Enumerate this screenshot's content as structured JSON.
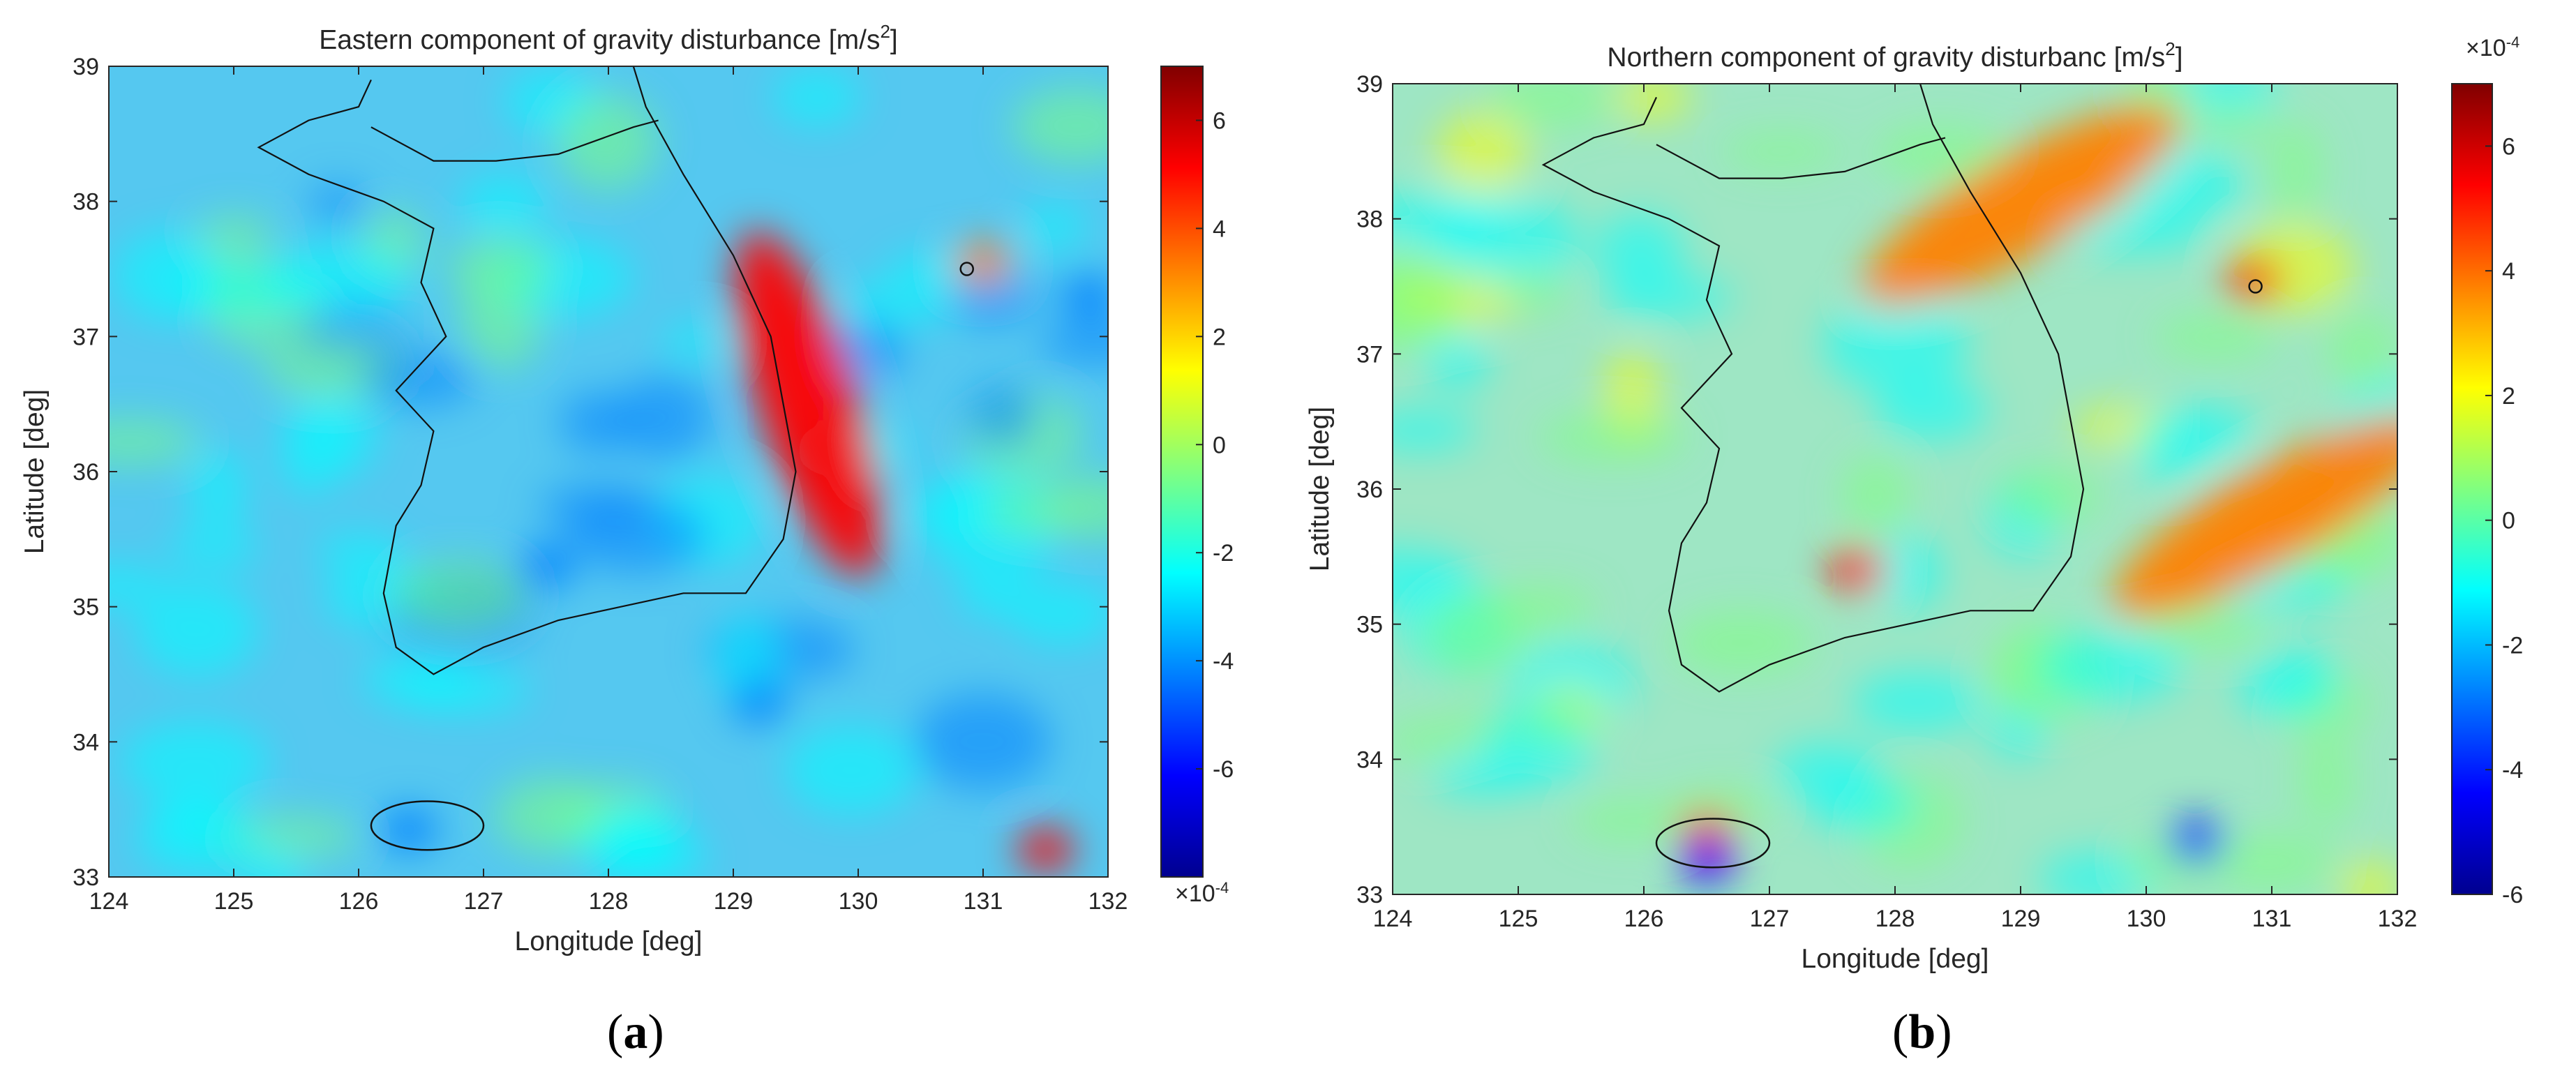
{
  "chart_data": [
    {
      "type": "heatmap",
      "panel_label": "a",
      "title": "Eastern component of gravity disturbance [m/s",
      "title_sup": "2",
      "title_end": "]",
      "xlabel": "Longitude [deg]",
      "ylabel": "Latitude [deg]",
      "xlim": [
        124,
        132
      ],
      "ylim": [
        33,
        39
      ],
      "xticks": [
        "124",
        "125",
        "126",
        "127",
        "128",
        "129",
        "130",
        "131",
        "132"
      ],
      "yticks": [
        "33",
        "34",
        "35",
        "36",
        "37",
        "38",
        "39"
      ],
      "colorbar": {
        "ticks": [
          "-6",
          "-4",
          "-2",
          "0",
          "2",
          "4",
          "6"
        ],
        "range": [
          -8,
          7
        ],
        "exponent": "-4",
        "exponent_position": "bottom",
        "colormap": "jet"
      },
      "features": [
        {
          "label": "strong positive band along east coast",
          "lon": 129.6,
          "lat": 36.5,
          "value": 4.5
        },
        {
          "label": "positive anomaly near Ulleungdo",
          "lon": 131.0,
          "lat": 37.55,
          "value": 4.0
        },
        {
          "label": "negative anomaly near Ulleungdo",
          "lon": 131.85,
          "lat": 37.3,
          "value": -5.0
        },
        {
          "label": "negative anomaly inland",
          "lon": 127.5,
          "lat": 35.3,
          "value": -4.5
        },
        {
          "label": "negative anomaly offshore south",
          "lon": 129.2,
          "lat": 34.3,
          "value": -4.0
        },
        {
          "label": "positive anomaly southeast",
          "lon": 131.5,
          "lat": 33.2,
          "value": 4.5
        },
        {
          "label": "Jeju negative/positive pair",
          "lon": 126.4,
          "lat": 33.35,
          "value": -5.0
        }
      ]
    },
    {
      "type": "heatmap",
      "panel_label": "b",
      "title": "Northern component of gravity disturbanc [m/s",
      "title_sup": "2",
      "title_end": "]",
      "xlabel": "Longitude [deg]",
      "ylabel": "Latitude [deg]",
      "xlim": [
        124,
        132
      ],
      "ylim": [
        33,
        39
      ],
      "xticks": [
        "124",
        "125",
        "126",
        "127",
        "128",
        "129",
        "130",
        "131",
        "132"
      ],
      "yticks": [
        "33",
        "34",
        "35",
        "36",
        "37",
        "38",
        "39"
      ],
      "colorbar": {
        "ticks": [
          "-6",
          "-4",
          "-2",
          "0",
          "2",
          "4",
          "6"
        ],
        "range": [
          -6,
          7
        ],
        "exponent": "-4",
        "exponent_position": "top",
        "colormap": "jet"
      },
      "features": [
        {
          "label": "positive band northeast",
          "lon": 129.0,
          "lat": 38.1,
          "value": 4.5
        },
        {
          "label": "positive band east of coast",
          "lon": 131.0,
          "lat": 35.8,
          "value": 4.5
        },
        {
          "label": "Ulleungdo dipole",
          "lon": 130.85,
          "lat": 37.55,
          "value": 5.0
        },
        {
          "label": "Jeju positive anomaly",
          "lon": 126.5,
          "lat": 33.45,
          "value": 6.0
        },
        {
          "label": "Jeju negative anomaly",
          "lon": 126.5,
          "lat": 33.25,
          "value": -4.0
        },
        {
          "label": "dipole west coast",
          "lon": 127.7,
          "lat": 35.4,
          "value": 5.0
        },
        {
          "label": "southeast dipoles",
          "lon": 130.4,
          "lat": 33.4,
          "value": -4.0
        }
      ]
    }
  ]
}
